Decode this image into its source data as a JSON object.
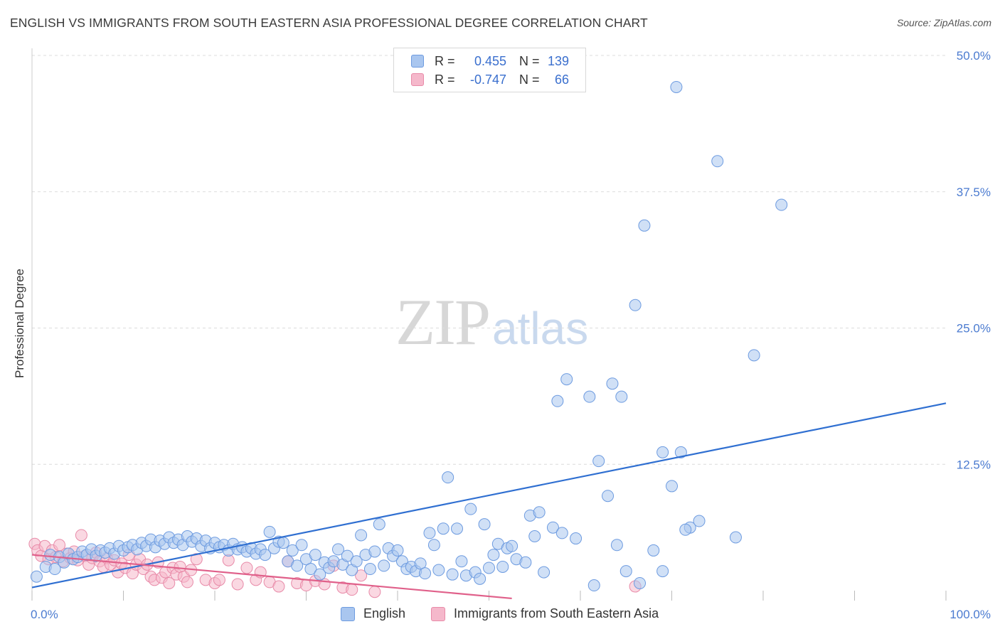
{
  "title": "ENGLISH VS IMMIGRANTS FROM SOUTH EASTERN ASIA PROFESSIONAL DEGREE CORRELATION CHART",
  "source": "Source: ZipAtlas.com",
  "watermark": {
    "zip": "ZIP",
    "atlas": "atlas"
  },
  "legend": {
    "english": {
      "r_label": "R =",
      "r_value": "0.455",
      "n_label": "N =",
      "n_value": "139"
    },
    "immigrants": {
      "r_label": "R =",
      "r_value": "-0.747",
      "n_label": "N =",
      "n_value": "66"
    }
  },
  "bottom_legend": {
    "english": "English",
    "immigrants": "Immigrants from South Eastern Asia"
  },
  "colors": {
    "english_fill": "#a9c6ef",
    "english_stroke": "#6d9be0",
    "english_line": "#2f6fd1",
    "immigrants_fill": "#f5b8cb",
    "immigrants_stroke": "#e88aa8",
    "immigrants_line": "#e0608a",
    "grid": "#dcdcdc",
    "tick_text": "#4b7bd0"
  },
  "chart_data": {
    "type": "scatter",
    "title": "ENGLISH VS IMMIGRANTS FROM SOUTH EASTERN ASIA PROFESSIONAL DEGREE CORRELATION CHART",
    "xlabel": "",
    "ylabel": "Professional Degree",
    "xlim": [
      0,
      100
    ],
    "ylim": [
      0,
      50
    ],
    "x_ticks": [
      "0.0%",
      "100.0%"
    ],
    "y_ticks": [
      {
        "value": 12.5,
        "label": "12.5%"
      },
      {
        "value": 25.0,
        "label": "25.0%"
      },
      {
        "value": 37.5,
        "label": "37.5%"
      },
      {
        "value": 50.0,
        "label": "50.0%"
      }
    ],
    "grid": "horizontal dashed",
    "legend_position": "top-center",
    "series": [
      {
        "name": "English",
        "r": 0.455,
        "n": 139,
        "trend": {
          "x0": 0,
          "y0": 1.2,
          "x1": 100,
          "y1": 18.1
        },
        "points": [
          [
            0.5,
            2.2
          ],
          [
            1.5,
            3.1
          ],
          [
            2,
            4.2
          ],
          [
            2.5,
            2.9
          ],
          [
            3,
            4.0
          ],
          [
            3.5,
            3.5
          ],
          [
            4,
            4.3
          ],
          [
            4.5,
            3.8
          ],
          [
            5,
            4.0
          ],
          [
            5.5,
            4.5
          ],
          [
            6,
            4.2
          ],
          [
            6.5,
            4.7
          ],
          [
            7,
            4.1
          ],
          [
            7.5,
            4.6
          ],
          [
            8,
            4.4
          ],
          [
            8.5,
            4.8
          ],
          [
            9,
            4.3
          ],
          [
            9.5,
            5.0
          ],
          [
            10,
            4.6
          ],
          [
            10.5,
            4.9
          ],
          [
            11,
            5.1
          ],
          [
            11.5,
            4.7
          ],
          [
            12,
            5.3
          ],
          [
            12.5,
            5.0
          ],
          [
            13,
            5.6
          ],
          [
            13.5,
            4.9
          ],
          [
            14,
            5.5
          ],
          [
            14.5,
            5.2
          ],
          [
            15,
            5.8
          ],
          [
            15.5,
            5.3
          ],
          [
            16,
            5.6
          ],
          [
            16.5,
            5.1
          ],
          [
            17,
            5.9
          ],
          [
            17.5,
            5.4
          ],
          [
            18,
            5.7
          ],
          [
            18.5,
            5.0
          ],
          [
            19,
            5.5
          ],
          [
            19.5,
            4.8
          ],
          [
            20,
            5.3
          ],
          [
            20.5,
            4.9
          ],
          [
            21,
            5.1
          ],
          [
            21.5,
            4.6
          ],
          [
            22,
            5.2
          ],
          [
            22.5,
            4.7
          ],
          [
            23,
            4.9
          ],
          [
            23.5,
            4.5
          ],
          [
            24,
            4.8
          ],
          [
            24.5,
            4.3
          ],
          [
            25,
            4.7
          ],
          [
            25.5,
            4.2
          ],
          [
            26,
            6.3
          ],
          [
            26.5,
            4.8
          ],
          [
            27,
            5.4
          ],
          [
            27.5,
            5.3
          ],
          [
            28,
            3.6
          ],
          [
            28.5,
            4.6
          ],
          [
            29,
            3.2
          ],
          [
            29.5,
            5.1
          ],
          [
            30,
            3.8
          ],
          [
            30.5,
            2.9
          ],
          [
            31,
            4.2
          ],
          [
            31.5,
            2.4
          ],
          [
            32,
            3.5
          ],
          [
            32.5,
            3.0
          ],
          [
            33,
            3.6
          ],
          [
            33.5,
            4.7
          ],
          [
            34,
            3.3
          ],
          [
            34.5,
            4.1
          ],
          [
            35,
            2.8
          ],
          [
            35.5,
            3.6
          ],
          [
            36,
            6.0
          ],
          [
            36.5,
            4.2
          ],
          [
            37,
            2.9
          ],
          [
            37.5,
            4.5
          ],
          [
            38,
            7.0
          ],
          [
            38.5,
            3.2
          ],
          [
            39,
            4.8
          ],
          [
            39.5,
            4.1
          ],
          [
            40,
            4.6
          ],
          [
            40.5,
            3.6
          ],
          [
            41,
            2.9
          ],
          [
            41.5,
            3.1
          ],
          [
            42,
            2.7
          ],
          [
            42.5,
            3.4
          ],
          [
            43,
            2.5
          ],
          [
            43.5,
            6.2
          ],
          [
            44,
            5.1
          ],
          [
            44.5,
            2.8
          ],
          [
            45,
            6.6
          ],
          [
            45.5,
            11.3
          ],
          [
            46,
            2.4
          ],
          [
            46.5,
            6.6
          ],
          [
            47,
            3.6
          ],
          [
            47.5,
            2.3
          ],
          [
            48,
            8.4
          ],
          [
            48.5,
            2.6
          ],
          [
            49,
            2.0
          ],
          [
            49.5,
            7.0
          ],
          [
            50,
            3.0
          ],
          [
            50.5,
            4.2
          ],
          [
            51,
            5.2
          ],
          [
            51.5,
            3.1
          ],
          [
            52,
            4.8
          ],
          [
            52.5,
            5.0
          ],
          [
            53,
            3.8
          ],
          [
            54,
            3.5
          ],
          [
            54.5,
            7.8
          ],
          [
            55,
            5.9
          ],
          [
            55.5,
            8.1
          ],
          [
            56,
            2.6
          ],
          [
            57,
            6.7
          ],
          [
            57.5,
            18.3
          ],
          [
            58,
            6.2
          ],
          [
            58.5,
            20.3
          ],
          [
            59.5,
            5.7
          ],
          [
            61,
            18.7
          ],
          [
            62,
            12.8
          ],
          [
            63,
            9.6
          ],
          [
            64,
            5.1
          ],
          [
            64.5,
            18.7
          ],
          [
            65,
            2.7
          ],
          [
            66,
            27.1
          ],
          [
            67,
            34.4
          ],
          [
            68,
            4.6
          ],
          [
            69,
            2.7
          ],
          [
            70,
            10.5
          ],
          [
            70.5,
            47.1
          ],
          [
            71,
            13.6
          ],
          [
            72,
            6.7
          ],
          [
            73,
            7.3
          ],
          [
            75,
            40.3
          ],
          [
            77,
            5.8
          ],
          [
            79,
            22.5
          ],
          [
            82,
            36.3
          ],
          [
            63.5,
            19.9
          ],
          [
            61.5,
            1.4
          ],
          [
            66.5,
            1.6
          ],
          [
            69,
            13.6
          ],
          [
            71.5,
            6.5
          ]
        ]
      },
      {
        "name": "Immigrants from South Eastern Asia",
        "r": -0.747,
        "n": 66,
        "trend": {
          "x0": 0,
          "y0": 4.2,
          "x1": 52.5,
          "y1": 0.2
        },
        "points": [
          [
            0.3,
            5.2
          ],
          [
            0.6,
            4.6
          ],
          [
            1.0,
            4.1
          ],
          [
            1.4,
            5.0
          ],
          [
            1.8,
            3.8
          ],
          [
            2.2,
            4.6
          ],
          [
            2.6,
            4.0
          ],
          [
            3.0,
            5.1
          ],
          [
            3.4,
            3.6
          ],
          [
            3.8,
            4.3
          ],
          [
            4.2,
            3.9
          ],
          [
            4.6,
            4.5
          ],
          [
            5.0,
            3.7
          ],
          [
            5.4,
            6.0
          ],
          [
            5.8,
            4.1
          ],
          [
            6.2,
            3.3
          ],
          [
            6.6,
            3.9
          ],
          [
            7.0,
            4.4
          ],
          [
            7.4,
            3.6
          ],
          [
            7.8,
            3.1
          ],
          [
            8.2,
            3.9
          ],
          [
            8.6,
            3.3
          ],
          [
            9.0,
            3.7
          ],
          [
            9.4,
            2.6
          ],
          [
            9.8,
            3.4
          ],
          [
            10.2,
            3.0
          ],
          [
            10.6,
            4.2
          ],
          [
            11.0,
            2.5
          ],
          [
            11.4,
            3.3
          ],
          [
            11.8,
            3.8
          ],
          [
            12.2,
            2.9
          ],
          [
            12.6,
            3.3
          ],
          [
            13.0,
            2.2
          ],
          [
            13.4,
            1.9
          ],
          [
            13.8,
            3.5
          ],
          [
            14.2,
            2.1
          ],
          [
            14.6,
            2.6
          ],
          [
            15.0,
            1.6
          ],
          [
            15.4,
            3.0
          ],
          [
            15.8,
            2.4
          ],
          [
            16.2,
            3.1
          ],
          [
            16.6,
            2.2
          ],
          [
            17.0,
            1.7
          ],
          [
            17.4,
            2.8
          ],
          [
            18.0,
            3.8
          ],
          [
            19.0,
            1.9
          ],
          [
            20.0,
            1.6
          ],
          [
            20.5,
            1.9
          ],
          [
            21.5,
            3.7
          ],
          [
            22.5,
            1.5
          ],
          [
            23.5,
            3.0
          ],
          [
            24.5,
            1.9
          ],
          [
            25.0,
            2.6
          ],
          [
            26.0,
            1.7
          ],
          [
            27.0,
            1.3
          ],
          [
            28.0,
            3.6
          ],
          [
            29.0,
            1.6
          ],
          [
            30.0,
            1.4
          ],
          [
            31.0,
            1.8
          ],
          [
            32.0,
            1.5
          ],
          [
            33.0,
            3.2
          ],
          [
            34.0,
            1.2
          ],
          [
            35.0,
            1.0
          ],
          [
            36.0,
            2.3
          ],
          [
            37.5,
            0.8
          ],
          [
            66.0,
            1.3
          ]
        ]
      }
    ]
  }
}
